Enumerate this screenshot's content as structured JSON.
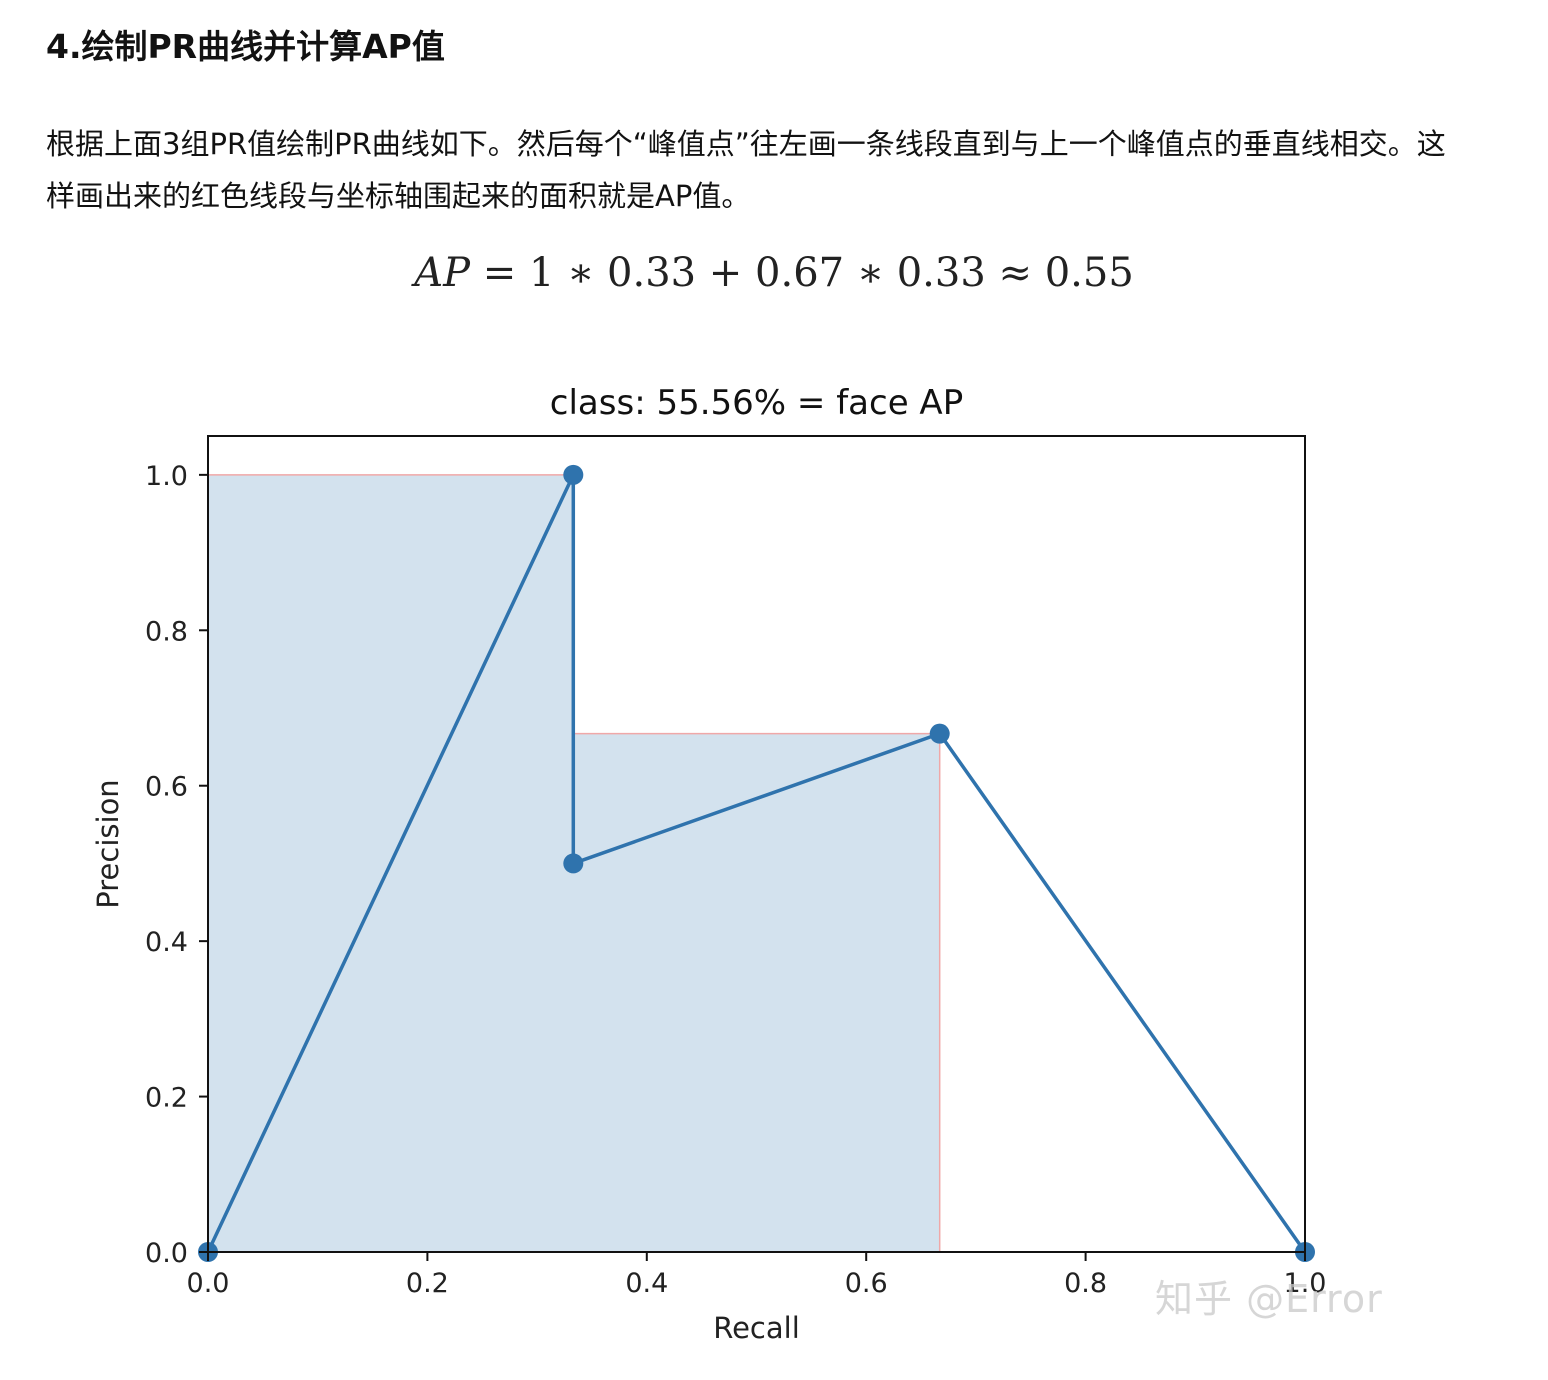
{
  "article": {
    "heading": "4.绘制PR曲线并计算AP值",
    "paragraph": "根据上面3组PR值绘制PR曲线如下。然后每个“峰值点”往左画一条线段直到与上一个峰值点的垂直线相交。这样画出来的红色线段与坐标轴围起来的面积就是AP值。",
    "formula_lhs": "AP",
    "formula_rhs": " = 1 ∗ 0.33 + 0.67 ∗ 0.33 ≈ 0.55"
  },
  "watermark": "知乎 @Error",
  "colors": {
    "line": "#2f73ad",
    "fill": "#d3e2ee",
    "envelope": "#f0a8a8"
  },
  "chart_data": {
    "type": "line",
    "title": "class: 55.56% = face AP",
    "xlabel": "Recall",
    "ylabel": "Precision",
    "xlim": [
      0.0,
      1.0
    ],
    "ylim": [
      0.0,
      1.05
    ],
    "xticks": [
      "0.0",
      "0.2",
      "0.4",
      "0.6",
      "0.8",
      "1.0"
    ],
    "yticks": [
      "0.0",
      "0.2",
      "0.4",
      "0.6",
      "0.8",
      "1.0"
    ],
    "grid": false,
    "series": [
      {
        "x": [
          0.0,
          0.333,
          0.333,
          0.667,
          1.0
        ],
        "y": [
          0.0,
          1.0,
          0.5,
          0.667,
          0.0
        ],
        "markers": true
      }
    ],
    "filled_area": {
      "x": [
        0.0,
        0.333,
        0.333,
        0.667,
        0.667
      ],
      "y": [
        1.0,
        1.0,
        0.667,
        0.667,
        0.0
      ]
    }
  }
}
